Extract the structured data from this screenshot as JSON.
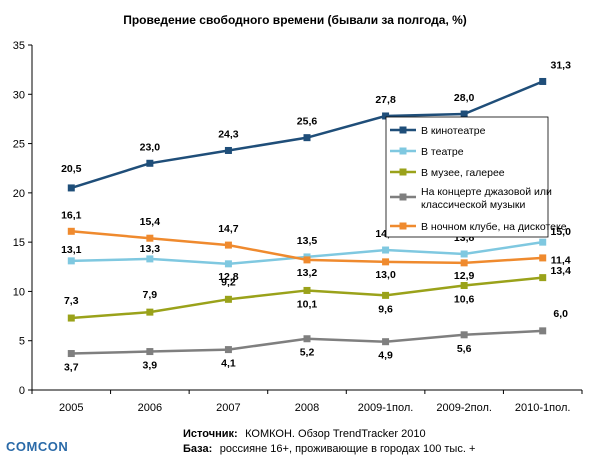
{
  "chart_data": {
    "type": "line",
    "title": "Проведение свободного времени (бывали за полгода, %)",
    "categories": [
      "2005",
      "2006",
      "2007",
      "2008",
      "2009-1пол.",
      "2009-2пол.",
      "2010-1пол."
    ],
    "ylim": [
      0,
      35
    ],
    "yticks": [
      "0",
      "5",
      "10",
      "15",
      "20",
      "25",
      "30",
      "35"
    ],
    "grid": false,
    "legend_position": "right",
    "series": [
      {
        "name": "В кинотеатре",
        "color": "#1f4e79",
        "values": [
          20.5,
          23.0,
          24.3,
          25.6,
          27.8,
          28.0,
          31.3
        ],
        "labels": [
          "20,5",
          "23,0",
          "24,3",
          "25,6",
          "27,8",
          "28,0",
          "31,3"
        ]
      },
      {
        "name": "В театре",
        "color": "#7fc8e0",
        "values": [
          13.1,
          13.3,
          12.8,
          13.5,
          14.2,
          13.8,
          15.0
        ],
        "labels": [
          "13,1",
          "13,3",
          "12,8",
          "13,5",
          "14,2",
          "13,8",
          "15,0"
        ]
      },
      {
        "name": "В музее, галерее",
        "color": "#9aa21a",
        "values": [
          7.3,
          7.9,
          9.2,
          10.1,
          9.6,
          10.6,
          11.4
        ],
        "labels": [
          "7,3",
          "7,9",
          "9,2",
          "10,1",
          "9,6",
          "10,6",
          "11,4"
        ]
      },
      {
        "name": "На концерте джазовой или классической музыки",
        "legend_lines": [
          "На концерте джазовой или",
          "классической музыки"
        ],
        "color": "#7f7f7f",
        "values": [
          3.7,
          3.9,
          4.1,
          5.2,
          4.9,
          5.6,
          6.0
        ],
        "labels": [
          "3,7",
          "3,9",
          "4,1",
          "5,2",
          "4,9",
          "5,6",
          "6,0"
        ]
      },
      {
        "name": "В ночном клубе, на дискотеке",
        "color": "#ef8a2e",
        "values": [
          16.1,
          15.4,
          14.7,
          13.2,
          13.0,
          12.9,
          13.4
        ],
        "labels": [
          "16,1",
          "15,4",
          "14,7",
          "13,2",
          "13,0",
          "12,9",
          "13,4"
        ]
      }
    ]
  },
  "source": {
    "line1_label": "Источник:",
    "line1_text": "КОМКОН. Обзор TrendTracker 2010",
    "line2_label": "База:",
    "line2_text": "россияне 16+, проживающие в городах 100 тыс. +"
  },
  "logo": "COMCON"
}
